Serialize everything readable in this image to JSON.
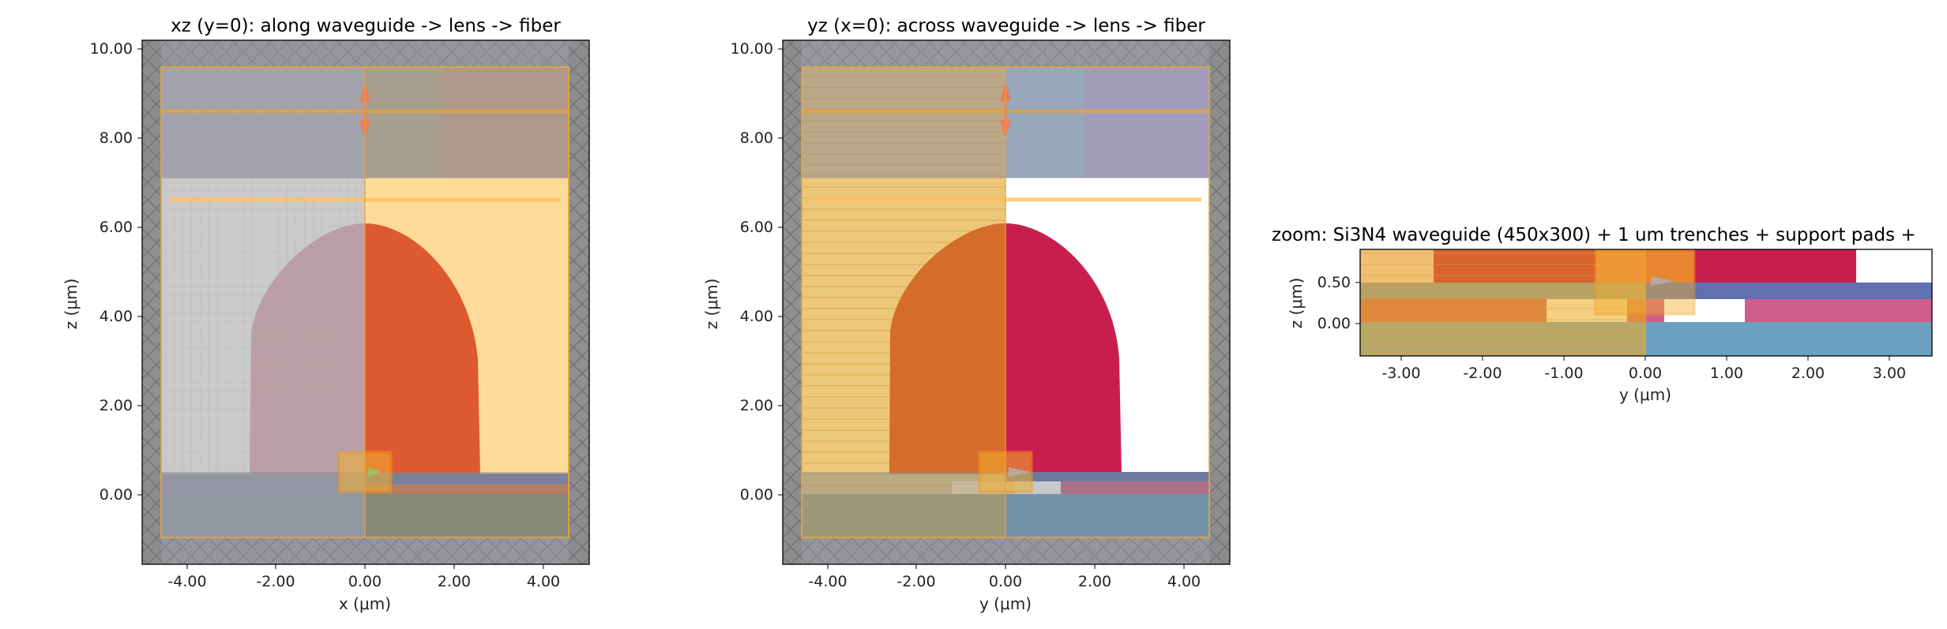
{
  "panels": [
    {
      "title": "xz (y=0): along waveguide -> lens -> fiber",
      "xlabel": "x (μm)",
      "ylabel": "z (μm)",
      "xticks": [
        "-4.00",
        "-2.00",
        "0.00",
        "2.00",
        "4.00"
      ],
      "yticks": [
        "0.00",
        "2.00",
        "4.00",
        "6.00",
        "8.00",
        "10.00"
      ]
    },
    {
      "title": "yz (x=0): across waveguide -> lens -> fiber",
      "xlabel": "y (μm)",
      "ylabel": "z (μm)",
      "xticks": [
        "-4.00",
        "-2.00",
        "0.00",
        "2.00",
        "4.00"
      ],
      "yticks": [
        "0.00",
        "2.00",
        "4.00",
        "6.00",
        "8.00",
        "10.00"
      ]
    },
    {
      "title": "zoom: Si3N4 waveguide (450x300) + 1 um trenches + support pads +",
      "xlabel": "y (μm)",
      "ylabel": "z (μm)",
      "xticks": [
        "-3.00",
        "-2.00",
        "-1.00",
        "0.00",
        "1.00",
        "2.00",
        "3.00"
      ],
      "yticks": [
        "0.00",
        "0.50"
      ]
    }
  ],
  "colors": {
    "lens_xz": "#dd5a30",
    "lens_yz": "#c81e4e",
    "cladding_top": "#ffdb99",
    "substrate": "#6ba0c0",
    "waveguide": "#e07840",
    "oxide_band": "#6070b0",
    "pad": "#cf5f88",
    "boundary_gray": "#8a8a8a",
    "monitor_orange": "#f5a623"
  }
}
